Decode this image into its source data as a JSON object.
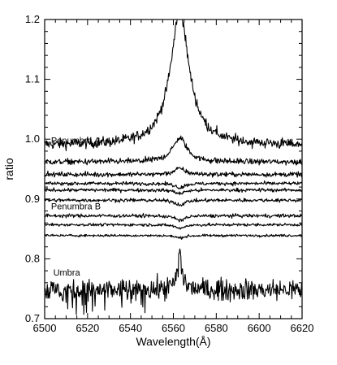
{
  "chart_data": {
    "type": "line",
    "xlabel": "Wavelength(Å)",
    "ylabel": "ratio",
    "xlim": [
      6500,
      6620
    ],
    "ylim": [
      0.7,
      1.2
    ],
    "x_ticks": [
      6500,
      6520,
      6540,
      6560,
      6580,
      6600,
      6620
    ],
    "x_tick_labels": [
      "6500",
      "6520",
      "6540",
      "6560",
      "6580",
      "6600",
      "6620"
    ],
    "y_ticks": [
      0.7,
      0.8,
      0.9,
      1.0,
      1.1,
      1.2
    ],
    "y_tick_labels": [
      "0.7",
      "0.8",
      "0.9",
      "1.0",
      "1.1",
      "1.2"
    ],
    "grid": false,
    "legend": "none",
    "line_color": "#000000",
    "line_center_wavelength": 6563,
    "annotations": [
      {
        "text": "Penumbra A",
        "x": 6503,
        "y": 0.993
      },
      {
        "text": "Penumbra B",
        "x": 6503,
        "y": 0.883
      },
      {
        "text": "Umbra",
        "x": 6504,
        "y": 0.772
      }
    ],
    "series": [
      {
        "baseline": 0.99,
        "peak": 0.215,
        "width": 5.5,
        "noise": 0.0045
      },
      {
        "baseline": 0.962,
        "peak": 0.04,
        "width": 4.0,
        "noise": 0.0025
      },
      {
        "baseline": 0.941,
        "peak": 0.01,
        "width": 3.0,
        "noise": 0.002
      },
      {
        "baseline": 0.926,
        "peak": -0.007,
        "width": 2.5,
        "noise": 0.0015
      },
      {
        "baseline": 0.915,
        "peak": -0.006,
        "width": 2.5,
        "noise": 0.0015
      },
      {
        "baseline": 0.898,
        "peak": -0.008,
        "width": 2.5,
        "noise": 0.0015
      },
      {
        "baseline": 0.872,
        "peak": -0.008,
        "width": 2.5,
        "noise": 0.0015
      },
      {
        "baseline": 0.857,
        "peak": -0.006,
        "width": 2.5,
        "noise": 0.0012
      },
      {
        "baseline": 0.839,
        "peak": -0.004,
        "width": 2.5,
        "noise": 0.001
      },
      {
        "baseline": 0.748,
        "peak": 0.04,
        "width": 1.8,
        "noise": 0.009
      }
    ]
  }
}
